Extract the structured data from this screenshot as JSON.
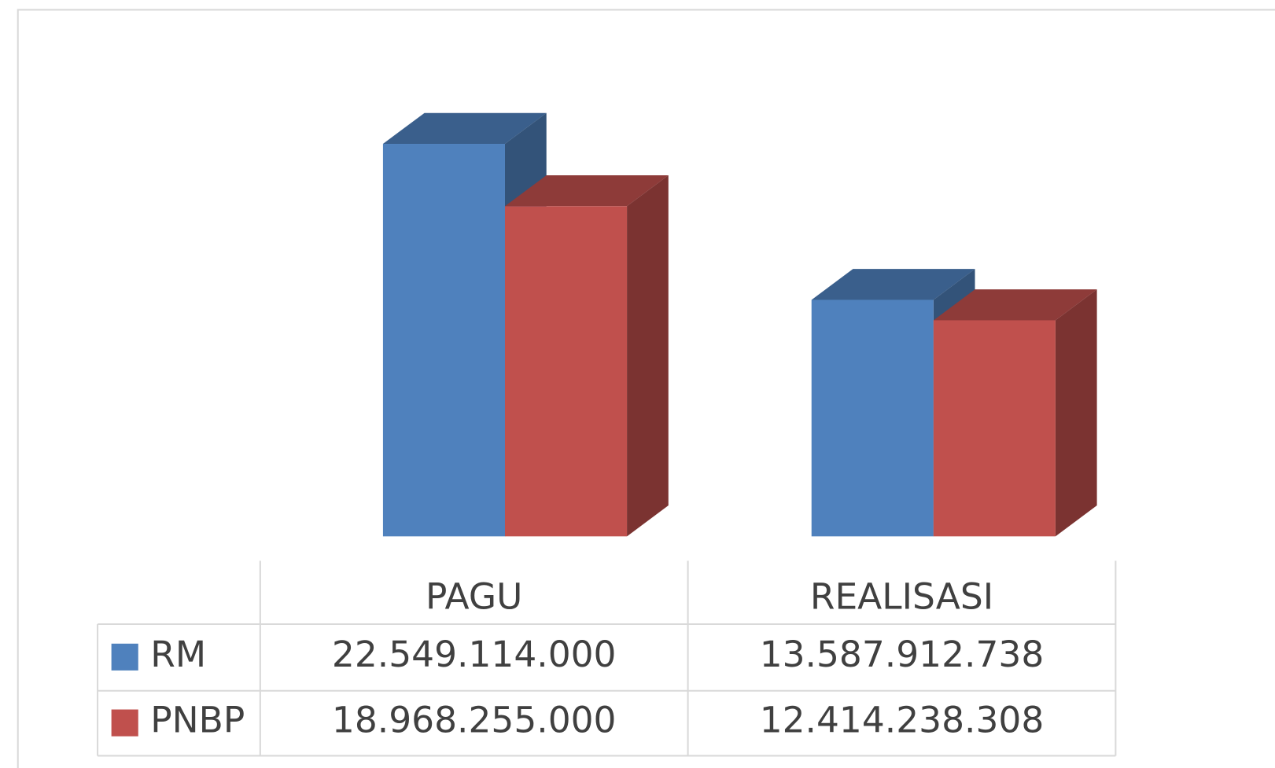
{
  "chart_data": {
    "type": "bar",
    "categories": [
      "PAGU",
      "REALISASI"
    ],
    "series": [
      {
        "name": "RM",
        "color": "#4f81bd",
        "values": [
          22549114000,
          13587912738
        ],
        "value_labels": [
          "22.549.114.000",
          "13.587.912.738"
        ]
      },
      {
        "name": "PNBP",
        "color": "#c0504d",
        "values": [
          18968255000,
          12414238308
        ],
        "value_labels": [
          "18.968.255.000",
          "12.414.238.308"
        ]
      }
    ]
  }
}
